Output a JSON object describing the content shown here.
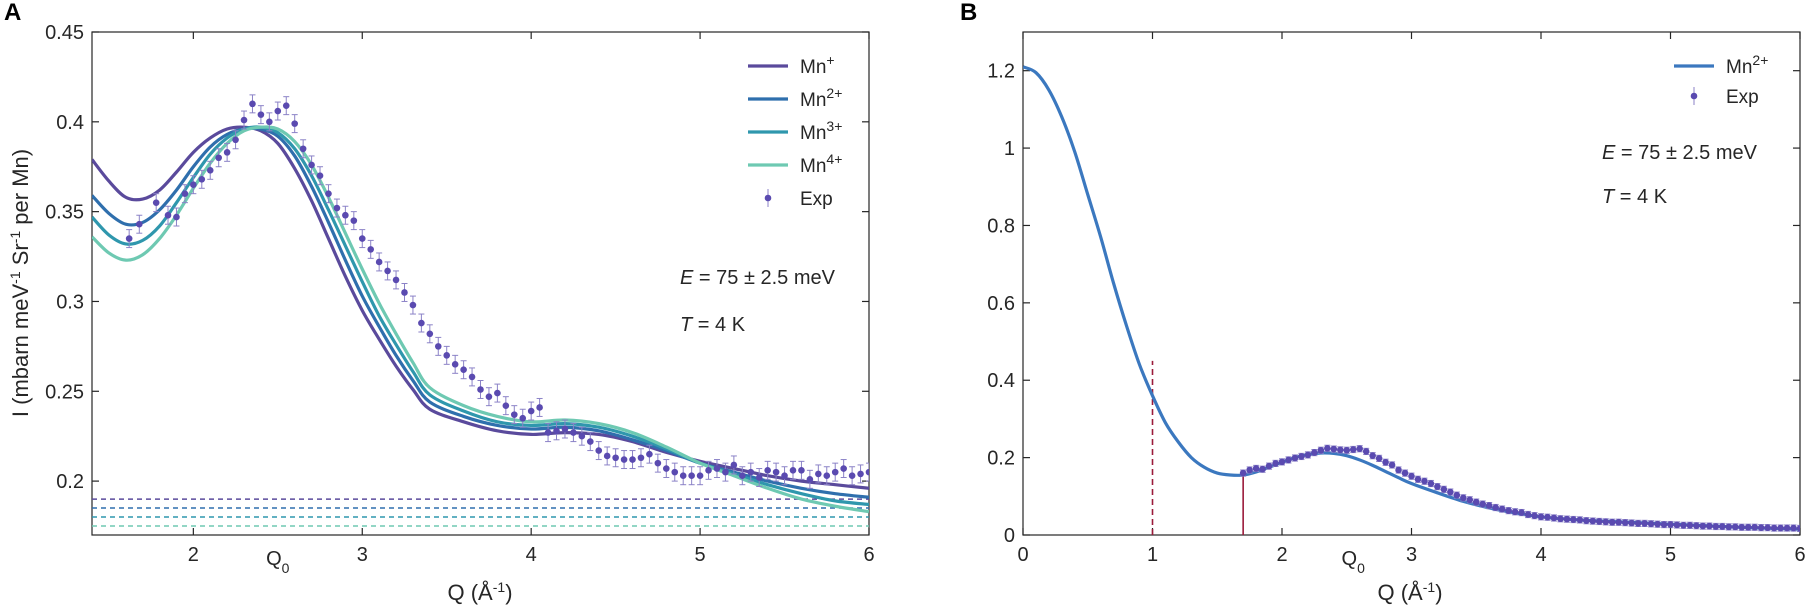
{
  "panels": [
    {
      "letter": "A",
      "chart_data": {
        "type": "line",
        "xlabel": "Q (Å-1)",
        "ylabel": "I (mbarn meV-1 Sr-1 per Mn)",
        "xlim": [
          1.4,
          6
        ],
        "ylim": [
          0.17,
          0.45
        ],
        "xticks": [
          2,
          3,
          4,
          5,
          6
        ],
        "yticks": [
          0.2,
          0.25,
          0.3,
          0.35,
          0.4,
          0.45
        ],
        "xtick_labels": [
          "2",
          "3",
          "4",
          "5",
          "6"
        ],
        "ytick_labels": [
          "0.2",
          "0.25",
          "0.3",
          "0.35",
          "0.4",
          "0.45"
        ],
        "q0_label": "Q0",
        "q0_x": 2.5,
        "annotations": [
          "E = 75 ± 2.5 meV",
          "T = 4 K"
        ],
        "series": [
          {
            "name": "Mn+",
            "color": "#5a4a9c",
            "baseline": 0.19,
            "x": [
              1.4,
              1.5,
              1.6,
              1.7,
              1.8,
              1.9,
              2.0,
              2.1,
              2.2,
              2.3,
              2.4,
              2.5,
              2.6,
              2.7,
              2.8,
              2.9,
              3.0,
              3.1,
              3.2,
              3.3,
              3.4,
              3.6,
              3.8,
              4.0,
              4.2,
              4.4,
              4.6,
              4.8,
              5.0,
              5.2,
              5.4,
              5.6,
              5.8,
              6.0
            ],
            "y": [
              0.379,
              0.367,
              0.358,
              0.357,
              0.362,
              0.372,
              0.383,
              0.391,
              0.396,
              0.397,
              0.395,
              0.388,
              0.374,
              0.356,
              0.335,
              0.314,
              0.295,
              0.279,
              0.264,
              0.251,
              0.24,
              0.233,
              0.228,
              0.226,
              0.227,
              0.226,
              0.222,
              0.216,
              0.211,
              0.207,
              0.203,
              0.2,
              0.198,
              0.196
            ]
          },
          {
            "name": "Mn2+",
            "color": "#2f6fad",
            "baseline": 0.185,
            "x": [
              1.4,
              1.5,
              1.6,
              1.7,
              1.8,
              1.9,
              2.0,
              2.1,
              2.2,
              2.3,
              2.4,
              2.5,
              2.6,
              2.7,
              2.8,
              2.9,
              3.0,
              3.1,
              3.2,
              3.3,
              3.4,
              3.6,
              3.8,
              4.0,
              4.2,
              4.4,
              4.6,
              4.8,
              5.0,
              5.2,
              5.4,
              5.6,
              5.8,
              6.0
            ],
            "y": [
              0.359,
              0.349,
              0.343,
              0.344,
              0.351,
              0.362,
              0.375,
              0.386,
              0.393,
              0.396,
              0.396,
              0.392,
              0.381,
              0.364,
              0.344,
              0.323,
              0.303,
              0.286,
              0.27,
              0.256,
              0.244,
              0.236,
              0.231,
              0.229,
              0.23,
              0.228,
              0.223,
              0.217,
              0.21,
              0.205,
              0.2,
              0.196,
              0.193,
              0.191
            ]
          },
          {
            "name": "Mn3+",
            "color": "#2f97ad",
            "baseline": 0.18,
            "x": [
              1.4,
              1.5,
              1.6,
              1.7,
              1.8,
              1.9,
              2.0,
              2.1,
              2.2,
              2.3,
              2.4,
              2.5,
              2.6,
              2.7,
              2.8,
              2.9,
              3.0,
              3.1,
              3.2,
              3.3,
              3.4,
              3.6,
              3.8,
              4.0,
              4.2,
              4.4,
              4.6,
              4.8,
              5.0,
              5.2,
              5.4,
              5.6,
              5.8,
              6.0
            ],
            "y": [
              0.347,
              0.337,
              0.332,
              0.334,
              0.342,
              0.355,
              0.369,
              0.382,
              0.391,
              0.396,
              0.397,
              0.394,
              0.385,
              0.37,
              0.351,
              0.331,
              0.311,
              0.292,
              0.276,
              0.261,
              0.248,
              0.239,
              0.233,
              0.231,
              0.232,
              0.23,
              0.225,
              0.218,
              0.21,
              0.204,
              0.198,
              0.193,
              0.189,
              0.187
            ]
          },
          {
            "name": "Mn4+",
            "color": "#6ec9b2",
            "baseline": 0.175,
            "x": [
              1.4,
              1.5,
              1.6,
              1.7,
              1.8,
              1.9,
              2.0,
              2.1,
              2.2,
              2.3,
              2.4,
              2.5,
              2.6,
              2.7,
              2.8,
              2.9,
              3.0,
              3.1,
              3.2,
              3.3,
              3.4,
              3.6,
              3.8,
              4.0,
              4.2,
              4.4,
              4.6,
              4.8,
              5.0,
              5.2,
              5.4,
              5.6,
              5.8,
              6.0
            ],
            "y": [
              0.336,
              0.327,
              0.323,
              0.326,
              0.335,
              0.348,
              0.363,
              0.377,
              0.388,
              0.395,
              0.397,
              0.396,
              0.389,
              0.376,
              0.358,
              0.338,
              0.318,
              0.299,
              0.282,
              0.266,
              0.252,
              0.242,
              0.236,
              0.233,
              0.234,
              0.232,
              0.227,
              0.219,
              0.21,
              0.203,
              0.196,
              0.19,
              0.186,
              0.183
            ]
          }
        ],
        "exp": {
          "name": "Exp",
          "color": "#5a4ab0",
          "x": [
            1.62,
            1.68,
            1.78,
            1.85,
            1.9,
            1.95,
            2.0,
            2.05,
            2.1,
            2.15,
            2.2,
            2.25,
            2.3,
            2.35,
            2.4,
            2.45,
            2.5,
            2.55,
            2.6,
            2.65,
            2.7,
            2.75,
            2.8,
            2.85,
            2.9,
            2.95,
            3.0,
            3.05,
            3.1,
            3.15,
            3.2,
            3.25,
            3.3,
            3.35,
            3.4,
            3.45,
            3.5,
            3.55,
            3.6,
            3.65,
            3.7,
            3.75,
            3.8,
            3.85,
            3.9,
            3.95,
            4.0,
            4.05,
            4.1,
            4.15,
            4.2,
            4.25,
            4.3,
            4.35,
            4.4,
            4.45,
            4.5,
            4.55,
            4.6,
            4.65,
            4.7,
            4.75,
            4.8,
            4.85,
            4.9,
            4.95,
            5.0,
            5.05,
            5.1,
            5.15,
            5.2,
            5.25,
            5.3,
            5.35,
            5.4,
            5.45,
            5.5,
            5.55,
            5.6,
            5.65,
            5.7,
            5.75,
            5.8,
            5.85,
            5.9,
            5.95,
            6.0
          ],
          "y": [
            0.335,
            0.343,
            0.355,
            0.348,
            0.347,
            0.36,
            0.365,
            0.368,
            0.373,
            0.38,
            0.383,
            0.39,
            0.401,
            0.41,
            0.404,
            0.4,
            0.406,
            0.409,
            0.399,
            0.385,
            0.376,
            0.37,
            0.36,
            0.352,
            0.348,
            0.345,
            0.335,
            0.329,
            0.322,
            0.317,
            0.312,
            0.305,
            0.298,
            0.288,
            0.282,
            0.275,
            0.27,
            0.265,
            0.262,
            0.258,
            0.251,
            0.247,
            0.249,
            0.242,
            0.237,
            0.235,
            0.239,
            0.241,
            0.227,
            0.228,
            0.229,
            0.227,
            0.225,
            0.222,
            0.217,
            0.214,
            0.213,
            0.212,
            0.212,
            0.213,
            0.215,
            0.21,
            0.207,
            0.205,
            0.203,
            0.203,
            0.203,
            0.206,
            0.207,
            0.205,
            0.209,
            0.203,
            0.205,
            0.202,
            0.206,
            0.205,
            0.203,
            0.206,
            0.206,
            0.201,
            0.204,
            0.203,
            0.205,
            0.207,
            0.203,
            0.204,
            0.205
          ],
          "err": 0.005
        }
      }
    },
    {
      "letter": "B",
      "chart_data": {
        "type": "line",
        "xlabel": "Q (Å-1)",
        "ylabel": "",
        "xlim": [
          0,
          6
        ],
        "ylim": [
          0,
          1.3
        ],
        "xticks": [
          0,
          1,
          2,
          3,
          4,
          5,
          6
        ],
        "yticks": [
          0,
          0.2,
          0.4,
          0.6,
          0.8,
          1,
          1.2
        ],
        "xtick_labels": [
          "0",
          "1",
          "2",
          "3",
          "4",
          "5",
          "6"
        ],
        "ytick_labels": [
          "0",
          "0.2",
          "0.4",
          "0.6",
          "0.8",
          "1",
          "1.2"
        ],
        "q0_label": "Q0",
        "q0_x": 2.55,
        "annotations": [
          "E = 75 ± 2.5 meV",
          "T = 4 K"
        ],
        "markers": [
          {
            "kind": "dashed",
            "x": 1.0,
            "y": 0.45,
            "color": "#9b1b3a"
          },
          {
            "kind": "solid",
            "x": 1.7,
            "y": 0.16,
            "color": "#9b1b3a"
          }
        ],
        "series": [
          {
            "name": "Mn2+",
            "color": "#3b78bf",
            "x": [
              0,
              0.1,
              0.2,
              0.3,
              0.4,
              0.5,
              0.6,
              0.7,
              0.8,
              0.9,
              1.0,
              1.1,
              1.2,
              1.3,
              1.4,
              1.5,
              1.6,
              1.7,
              1.8,
              1.9,
              2.0,
              2.1,
              2.2,
              2.3,
              2.4,
              2.5,
              2.6,
              2.7,
              2.8,
              2.9,
              3.0,
              3.2,
              3.4,
              3.6,
              3.8,
              4.0,
              4.2,
              4.4,
              4.6,
              4.8,
              5.0,
              5.2,
              5.4,
              5.6,
              5.8,
              6.0
            ],
            "y": [
              1.21,
              1.195,
              1.15,
              1.08,
              0.99,
              0.88,
              0.77,
              0.65,
              0.54,
              0.44,
              0.36,
              0.29,
              0.24,
              0.2,
              0.175,
              0.16,
              0.155,
              0.155,
              0.163,
              0.175,
              0.188,
              0.2,
              0.208,
              0.212,
              0.211,
              0.205,
              0.194,
              0.18,
              0.164,
              0.148,
              0.133,
              0.109,
              0.087,
              0.07,
              0.057,
              0.047,
              0.041,
              0.037,
              0.034,
              0.031,
              0.028,
              0.025,
              0.022,
              0.019,
              0.017,
              0.015
            ]
          }
        ],
        "exp": {
          "name": "Exp",
          "color": "#5a4ab0",
          "x": [
            1.7,
            1.75,
            1.8,
            1.85,
            1.9,
            1.95,
            2.0,
            2.05,
            2.1,
            2.15,
            2.2,
            2.25,
            2.3,
            2.35,
            2.4,
            2.45,
            2.5,
            2.55,
            2.6,
            2.65,
            2.7,
            2.75,
            2.8,
            2.85,
            2.9,
            2.95,
            3.0,
            3.05,
            3.1,
            3.15,
            3.2,
            3.25,
            3.3,
            3.35,
            3.4,
            3.45,
            3.5,
            3.55,
            3.6,
            3.65,
            3.7,
            3.75,
            3.8,
            3.85,
            3.9,
            3.95,
            4.0,
            4.05,
            4.1,
            4.15,
            4.2,
            4.25,
            4.3,
            4.35,
            4.4,
            4.45,
            4.5,
            4.55,
            4.6,
            4.65,
            4.7,
            4.75,
            4.8,
            4.85,
            4.9,
            4.95,
            5.0,
            5.05,
            5.1,
            5.15,
            5.2,
            5.25,
            5.3,
            5.35,
            5.4,
            5.45,
            5.5,
            5.55,
            5.6,
            5.65,
            5.7,
            5.75,
            5.8,
            5.85,
            5.9,
            5.95,
            6.0
          ],
          "y": [
            0.16,
            0.168,
            0.172,
            0.17,
            0.178,
            0.185,
            0.189,
            0.194,
            0.199,
            0.203,
            0.207,
            0.213,
            0.219,
            0.224,
            0.222,
            0.22,
            0.219,
            0.221,
            0.223,
            0.216,
            0.205,
            0.198,
            0.188,
            0.181,
            0.168,
            0.16,
            0.152,
            0.144,
            0.139,
            0.133,
            0.125,
            0.118,
            0.111,
            0.103,
            0.096,
            0.091,
            0.085,
            0.08,
            0.076,
            0.071,
            0.067,
            0.063,
            0.06,
            0.058,
            0.053,
            0.05,
            0.047,
            0.046,
            0.044,
            0.042,
            0.041,
            0.04,
            0.039,
            0.037,
            0.036,
            0.035,
            0.034,
            0.033,
            0.033,
            0.032,
            0.031,
            0.03,
            0.03,
            0.029,
            0.028,
            0.027,
            0.027,
            0.026,
            0.025,
            0.025,
            0.024,
            0.023,
            0.023,
            0.022,
            0.022,
            0.021,
            0.021,
            0.02,
            0.02,
            0.02,
            0.019,
            0.019,
            0.018,
            0.018,
            0.018,
            0.018,
            0.017
          ],
          "err": 0.008
        }
      }
    }
  ]
}
